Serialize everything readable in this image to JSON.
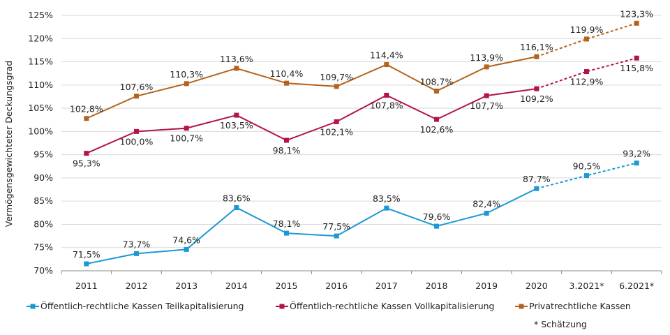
{
  "chart_data": {
    "type": "line",
    "title": "",
    "ylabel": "Vermögensgewichteter Deckungsgrad",
    "xlabel": "",
    "ylim": [
      70,
      125
    ],
    "ytick_step": 5,
    "grid": "horizontal",
    "legend_position": "bottom",
    "categories": [
      "2011",
      "2012",
      "2013",
      "2014",
      "2015",
      "2016",
      "2017",
      "2018",
      "2019",
      "2020",
      "3.2021*",
      "6.2021*"
    ],
    "yticks": [
      "70%",
      "75%",
      "80%",
      "85%",
      "90%",
      "95%",
      "100%",
      "105%",
      "110%",
      "115%",
      "120%",
      "125%"
    ],
    "estimate_from_category": "3.2021*",
    "footnote": "* Schätzung",
    "series": [
      {
        "name": "Öffentlich-rechtliche Kassen Teilkapitalisierung",
        "color": "#1b98d5",
        "values": [
          71.5,
          73.7,
          74.6,
          83.6,
          78.1,
          77.5,
          83.5,
          79.6,
          82.4,
          87.7,
          90.5,
          93.2
        ],
        "labels": [
          "71,5%",
          "73,7%",
          "74,6%",
          "83,6%",
          "78,1%",
          "77,5%",
          "83,5%",
          "79,6%",
          "82,4%",
          "87,7%",
          "90,5%",
          "93,2%"
        ]
      },
      {
        "name": "Öffentlich-rechtliche Kassen Vollkapitalisierung",
        "color": "#b3134b",
        "values": [
          95.3,
          100.0,
          100.7,
          103.5,
          98.1,
          102.1,
          107.8,
          102.6,
          107.7,
          109.2,
          112.9,
          115.8
        ],
        "labels": [
          "95,3%",
          "100,0%",
          "100,7%",
          "103,5%",
          "98,1%",
          "102,1%",
          "107,8%",
          "102,6%",
          "107,7%",
          "109,2%",
          "112,9%",
          "115,8%"
        ]
      },
      {
        "name": "Privatrechtliche Kassen",
        "color": "#b5631c",
        "values": [
          102.8,
          107.6,
          110.3,
          113.6,
          110.4,
          109.7,
          114.4,
          108.7,
          113.9,
          116.1,
          119.9,
          123.3
        ],
        "labels": [
          "102,8%",
          "107,6%",
          "110,3%",
          "113,6%",
          "110,4%",
          "109,7%",
          "114,4%",
          "108,7%",
          "113,9%",
          "116,1%",
          "119,9%",
          "123,3%"
        ]
      }
    ]
  }
}
